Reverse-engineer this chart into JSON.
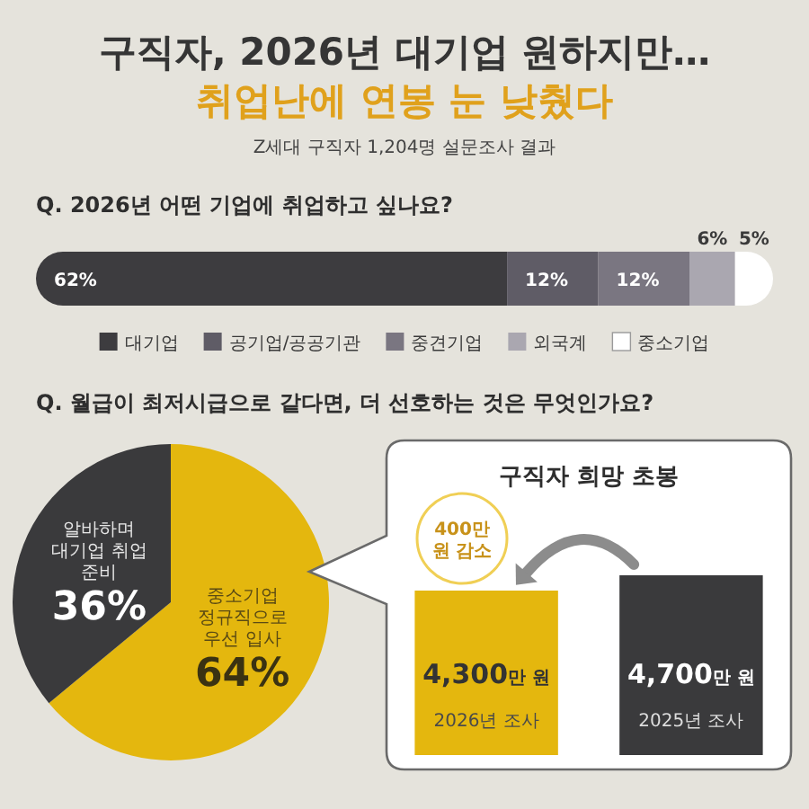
{
  "chart_data": [
    {
      "type": "other",
      "title": "구직자, 2026년 대기업 원하지만…",
      "subtitle": "취업난에 연봉 눈 낮췄다",
      "annotations": [
        "Z세대 구직자 1,204명 설문조사 결과"
      ]
    },
    {
      "type": "bar",
      "orientation": "horizontal",
      "stacked": true,
      "legend": "bottom",
      "title": "Q. 2026년 어떤 기업에 취업하고 싶나요?",
      "categories": [
        null
      ],
      "series": [
        {
          "name": "대기업",
          "color": "#3d3c3f",
          "values": [
            62
          ],
          "value_labels": [
            "62%"
          ]
        },
        {
          "name": "공기업/공공기관",
          "color": "#5f5c66",
          "values": [
            12
          ],
          "value_labels": [
            "12%"
          ]
        },
        {
          "name": "중견기업",
          "color": "#7a7681",
          "values": [
            12
          ],
          "value_labels": [
            "12%"
          ]
        },
        {
          "name": "외국계",
          "color": "#aaa7b0",
          "values": [
            6
          ],
          "value_labels": [
            "6%"
          ]
        },
        {
          "name": "중소기업",
          "color": "#ffffff",
          "values": [
            5
          ],
          "value_labels": [
            "5%"
          ]
        }
      ]
    },
    {
      "type": "pie",
      "title": "Q. 월급이 최저시급으로 같다면, 더 선호하는 것은 무엇인가요?",
      "categories": [
        "중소기업 정규직으로 우선 입사",
        "알바하며 대기업 취업 준비"
      ],
      "values": [
        64,
        36
      ],
      "colors": [
        "#e4b70e",
        "#3a3a3c"
      ],
      "value_labels": [
        "64%",
        "36%"
      ]
    },
    {
      "type": "bar",
      "title": "구직자 희망 초봉",
      "categories": [
        "2026년 조사",
        "2025년 조사"
      ],
      "values": [
        4300,
        4700
      ],
      "colors": [
        "#e4b70e",
        "#3a3a3c"
      ],
      "value_labels": [
        "4,300만 원",
        "4,700만 원"
      ],
      "annotations": [
        "400만 원 감소"
      ]
    }
  ]
}
